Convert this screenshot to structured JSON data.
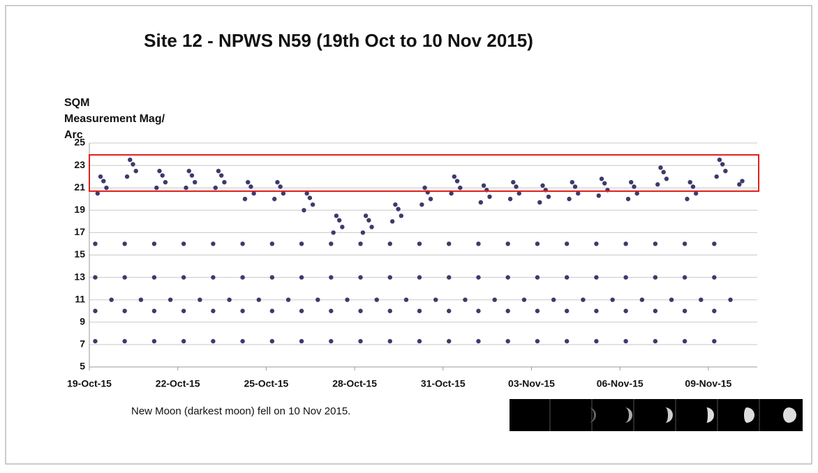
{
  "chart_data": {
    "type": "scatter",
    "title": "Site 12 - NPWS N59 (19th Oct to 10 Nov 2015)",
    "y_label_lines": [
      "SQM",
      "Measurement Mag/",
      "Arc"
    ],
    "annotation": "New Moon (darkest moon) fell on 10 Nov 2015.",
    "color": "#3d3a6b",
    "grid": "y",
    "xlim": [
      0,
      22.66
    ],
    "ylim": [
      5,
      25
    ],
    "yticks": [
      5,
      7,
      9,
      11,
      13,
      15,
      17,
      19,
      21,
      23,
      25
    ],
    "xticks": [
      {
        "value": 0,
        "label": "19-Oct-15"
      },
      {
        "value": 3,
        "label": "22-Oct-15"
      },
      {
        "value": 6,
        "label": "25-Oct-15"
      },
      {
        "value": 9,
        "label": "28-Oct-15"
      },
      {
        "value": 12,
        "label": "31-Oct-15"
      },
      {
        "value": 15,
        "label": "03-Nov-15"
      },
      {
        "value": 18,
        "label": "06-Nov-15"
      },
      {
        "value": 21,
        "label": "09-Nov-15"
      }
    ],
    "x": [
      0.2,
      0.2,
      0.2,
      0.2,
      0.28,
      0.38,
      0.48,
      0.58,
      0.75,
      1.2,
      1.2,
      1.2,
      1.2,
      1.28,
      1.38,
      1.48,
      1.58,
      1.75,
      2.2,
      2.2,
      2.2,
      2.2,
      2.28,
      2.38,
      2.48,
      2.58,
      2.75,
      3.2,
      3.2,
      3.2,
      3.2,
      3.28,
      3.38,
      3.48,
      3.58,
      3.75,
      4.2,
      4.2,
      4.2,
      4.2,
      4.28,
      4.38,
      4.48,
      4.58,
      4.75,
      5.2,
      5.2,
      5.2,
      5.2,
      5.28,
      5.38,
      5.48,
      5.58,
      5.75,
      6.2,
      6.2,
      6.2,
      6.2,
      6.28,
      6.38,
      6.48,
      6.58,
      6.75,
      7.2,
      7.2,
      7.2,
      7.2,
      7.28,
      7.38,
      7.48,
      7.58,
      7.75,
      8.2,
      8.2,
      8.2,
      8.2,
      8.28,
      8.38,
      8.48,
      8.58,
      8.75,
      9.2,
      9.2,
      9.2,
      9.2,
      9.28,
      9.38,
      9.48,
      9.58,
      9.75,
      10.2,
      10.2,
      10.2,
      10.2,
      10.28,
      10.38,
      10.48,
      10.58,
      10.75,
      11.2,
      11.2,
      11.2,
      11.2,
      11.28,
      11.38,
      11.48,
      11.58,
      11.75,
      12.2,
      12.2,
      12.2,
      12.2,
      12.28,
      12.38,
      12.48,
      12.58,
      12.75,
      13.2,
      13.2,
      13.2,
      13.2,
      13.28,
      13.38,
      13.48,
      13.58,
      13.75,
      14.2,
      14.2,
      14.2,
      14.2,
      14.28,
      14.38,
      14.48,
      14.58,
      14.75,
      15.2,
      15.2,
      15.2,
      15.2,
      15.28,
      15.38,
      15.48,
      15.58,
      15.75,
      16.2,
      16.2,
      16.2,
      16.2,
      16.28,
      16.38,
      16.48,
      16.58,
      16.75,
      17.2,
      17.2,
      17.2,
      17.2,
      17.28,
      17.38,
      17.48,
      17.58,
      17.75,
      18.2,
      18.2,
      18.2,
      18.2,
      18.28,
      18.38,
      18.48,
      18.58,
      18.75,
      19.2,
      19.2,
      19.2,
      19.2,
      19.28,
      19.38,
      19.48,
      19.58,
      19.75,
      20.2,
      20.2,
      20.2,
      20.2,
      20.28,
      20.38,
      20.48,
      20.58,
      20.75,
      21.2,
      21.2,
      21.2,
      21.2,
      21.28,
      21.38,
      21.48,
      21.58,
      21.75,
      22.05,
      22.15
    ],
    "values": [
      7.3,
      10,
      13,
      16,
      20.5,
      22,
      21.6,
      21,
      11,
      7.3,
      10,
      13,
      16,
      22,
      23.5,
      23.1,
      22.5,
      11,
      7.3,
      10,
      13,
      16,
      21,
      22.5,
      22.1,
      21.5,
      11,
      7.3,
      10,
      13,
      16,
      21,
      22.5,
      22.1,
      21.5,
      11,
      7.3,
      10,
      13,
      16,
      21,
      22.5,
      22.1,
      21.5,
      11,
      7.3,
      10,
      13,
      16,
      20,
      21.5,
      21.1,
      20.5,
      11,
      7.3,
      10,
      13,
      16,
      20,
      21.5,
      21.1,
      20.5,
      11,
      7.3,
      10,
      13,
      16,
      19,
      20.5,
      20.1,
      19.5,
      11,
      7.3,
      10,
      13,
      16,
      17,
      18.5,
      18.1,
      17.5,
      11,
      7.3,
      10,
      13,
      16,
      17,
      18.5,
      18.1,
      17.5,
      11,
      7.3,
      10,
      13,
      16,
      18,
      19.5,
      19.1,
      18.5,
      11,
      7.3,
      10,
      13,
      16,
      19.5,
      21,
      20.6,
      20,
      11,
      7.3,
      10,
      13,
      16,
      20.5,
      22,
      21.6,
      21,
      11,
      7.3,
      10,
      13,
      16,
      19.7,
      21.2,
      20.8,
      20.2,
      11,
      7.3,
      10,
      13,
      16,
      20,
      21.5,
      21.1,
      20.5,
      11,
      7.3,
      10,
      13,
      16,
      19.7,
      21.2,
      20.8,
      20.2,
      11,
      7.3,
      10,
      13,
      16,
      20,
      21.5,
      21.1,
      20.5,
      11,
      7.3,
      10,
      13,
      16,
      20.3,
      21.8,
      21.4,
      20.8,
      11,
      7.3,
      10,
      13,
      16,
      20,
      21.5,
      21.1,
      20.5,
      11,
      7.3,
      10,
      13,
      16,
      21.3,
      22.8,
      22.4,
      21.8,
      11,
      7.3,
      10,
      13,
      16,
      20,
      21.5,
      21.1,
      20.5,
      11,
      7.3,
      10,
      13,
      16,
      22,
      23.5,
      23.1,
      22.5,
      11,
      21.3,
      21.6
    ]
  }
}
